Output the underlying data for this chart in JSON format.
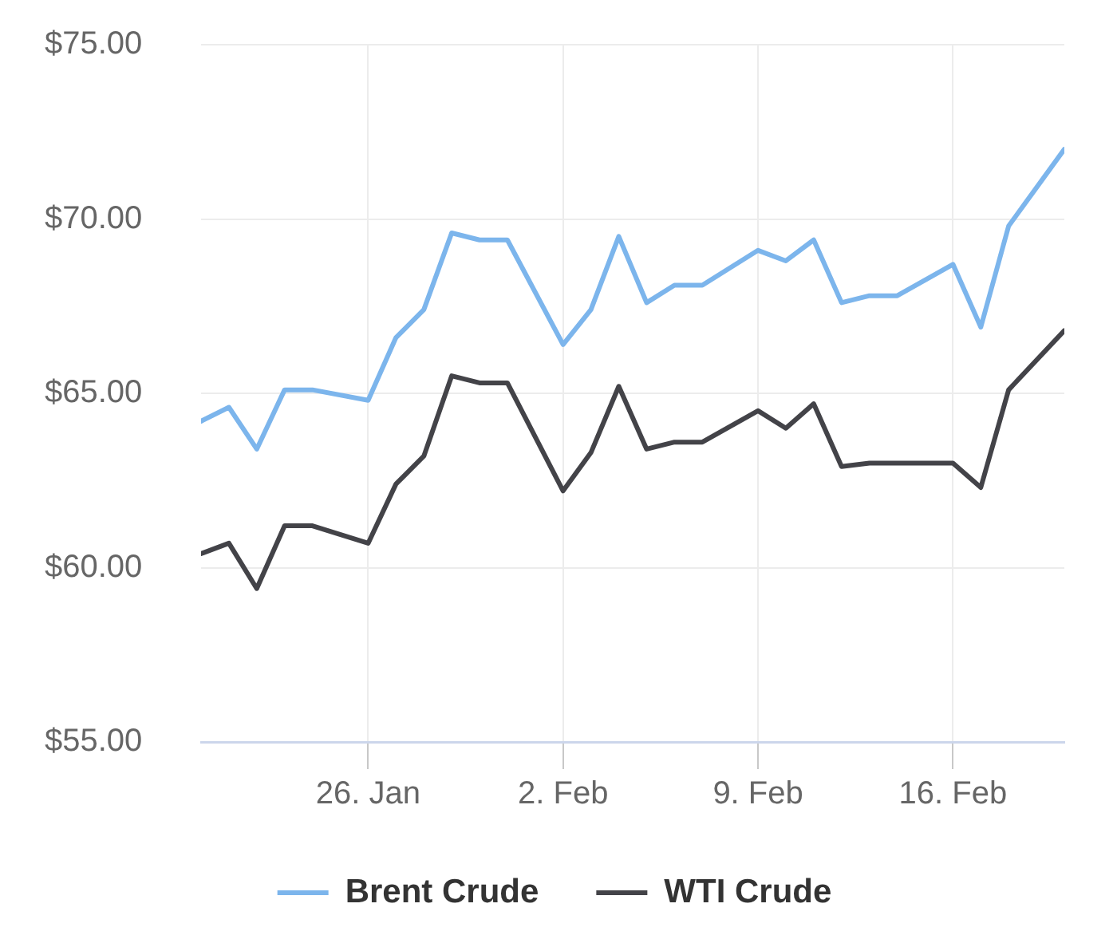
{
  "chart_data": {
    "type": "line",
    "x": [
      "--01-20",
      "--01-21",
      "--01-22",
      "--01-23",
      "--01-24",
      "--01-26",
      "--01-27",
      "--01-28",
      "--01-29",
      "--01-30",
      "--01-31",
      "--02-02",
      "--02-03",
      "--02-04",
      "--02-05",
      "--02-06",
      "--02-07",
      "--02-09",
      "--02-10",
      "--02-11",
      "--02-12",
      "--02-13",
      "--02-14",
      "--02-16",
      "--02-17",
      "--02-18",
      "--02-20"
    ],
    "series": [
      {
        "name": "Brent Crude",
        "color": "#7cb5ec",
        "values": [
          64.2,
          64.6,
          63.4,
          65.1,
          65.1,
          64.8,
          66.6,
          67.4,
          69.6,
          69.4,
          69.4,
          66.4,
          67.4,
          69.5,
          67.6,
          68.1,
          68.1,
          69.1,
          68.8,
          69.4,
          67.6,
          67.8,
          67.8,
          68.7,
          66.9,
          69.8,
          72.0
        ]
      },
      {
        "name": "WTI Crude",
        "color": "#434348",
        "values": [
          60.4,
          60.7,
          59.4,
          61.2,
          61.2,
          60.7,
          62.4,
          63.2,
          65.5,
          65.3,
          65.3,
          62.2,
          63.3,
          65.2,
          63.4,
          63.6,
          63.6,
          64.5,
          64.0,
          64.7,
          62.9,
          63.0,
          63.0,
          63.0,
          62.3,
          65.1,
          66.8
        ]
      }
    ],
    "xlim": [
      "--01-20",
      "--02-20"
    ],
    "xticks": [
      {
        "value": "--01-26",
        "label": "26. Jan"
      },
      {
        "value": "--02-02",
        "label": "2. Feb"
      },
      {
        "value": "--02-09",
        "label": "9. Feb"
      },
      {
        "value": "--02-16",
        "label": "16. Feb"
      }
    ],
    "ylim": [
      55,
      75
    ],
    "yticks": [
      {
        "value": 55,
        "label": "$55.00"
      },
      {
        "value": 60,
        "label": "$60.00"
      },
      {
        "value": 65,
        "label": "$65.00"
      },
      {
        "value": 70,
        "label": "$70.00"
      },
      {
        "value": 75,
        "label": "$75.00"
      }
    ],
    "grid": true,
    "legend": "bottom",
    "marker": "none",
    "line_style": "solid"
  }
}
